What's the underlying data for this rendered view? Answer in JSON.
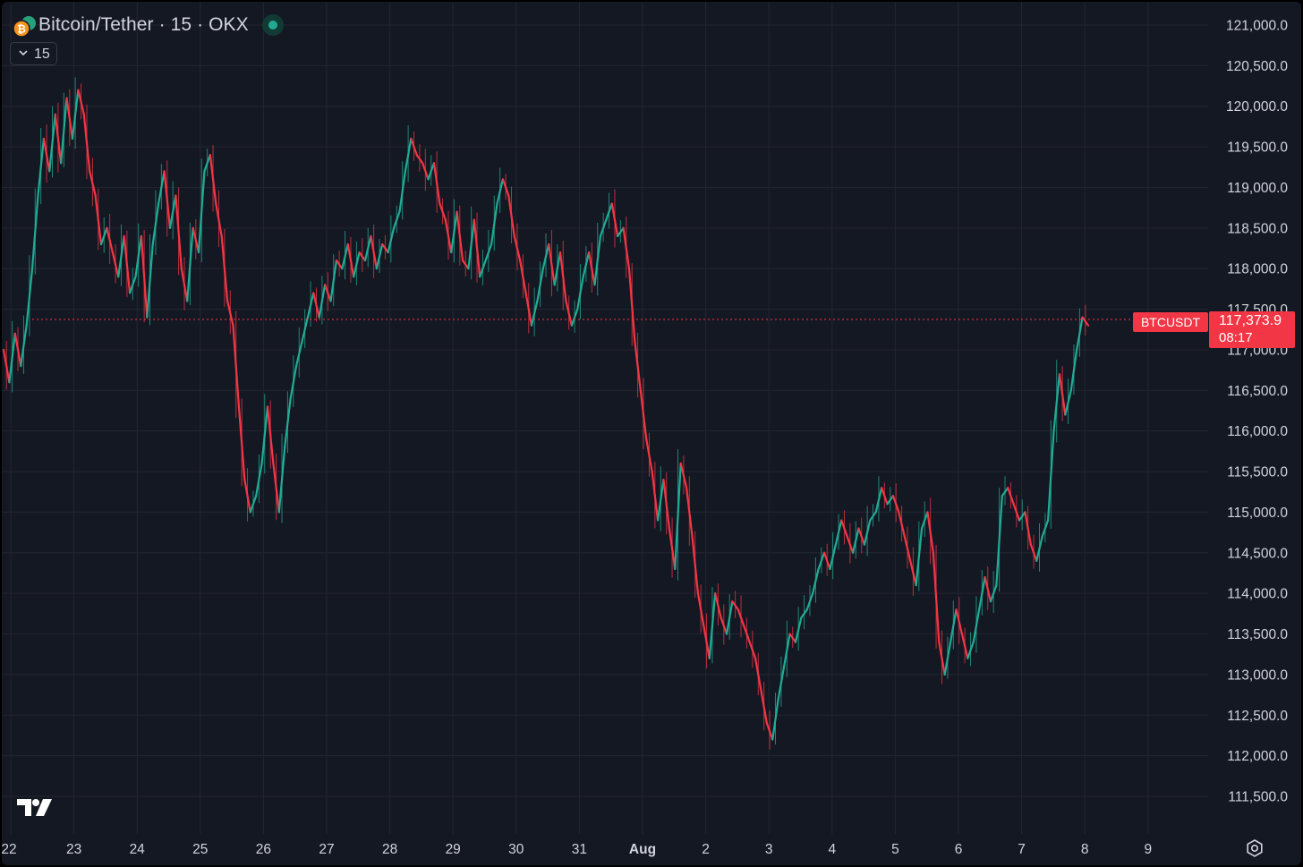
{
  "header": {
    "title": "Bitcoin/Tether · 15 · OKX",
    "interval_label": "15",
    "icons": [
      "bitcoin-tether-icon",
      "live-status-icon",
      "chevron-down-icon",
      "tradingview-logo",
      "settings-icon"
    ]
  },
  "price_label": {
    "symbol": "BTCUSDT",
    "price": "117,373.9",
    "countdown": "08:17"
  },
  "colors": {
    "background": "#141823",
    "grid": "#232632",
    "text": "#d1d4dc",
    "up": "#22ab94",
    "down": "#f23645"
  },
  "chart_data": {
    "type": "line",
    "title": "",
    "xlabel": "",
    "ylabel": "",
    "ylim": [
      111000,
      121250
    ],
    "y_ticks": [
      "121,000.0",
      "120,500.0",
      "120,000.0",
      "119,500.0",
      "119,000.0",
      "118,500.0",
      "118,000.0",
      "117,500.0",
      "117,000.0",
      "116,500.0",
      "116,000.0",
      "115,500.0",
      "115,000.0",
      "114,500.0",
      "114,000.0",
      "113,500.0",
      "113,000.0",
      "112,500.0",
      "112,000.0",
      "111,500.0"
    ],
    "x_tick_labels": [
      "22",
      "23",
      "24",
      "25",
      "26",
      "27",
      "28",
      "29",
      "30",
      "31",
      "Aug",
      "2",
      "3",
      "4",
      "5",
      "6",
      "7",
      "8",
      "9"
    ],
    "last_price": 117373.9,
    "series": [
      {
        "values": [
          117000,
          116600,
          117200,
          116800,
          117300,
          118000,
          118900,
          119600,
          119200,
          119900,
          119300,
          120100,
          119600,
          120200,
          119900,
          119200,
          118900,
          118300,
          118500,
          118200,
          117900,
          118400,
          117700,
          117900,
          118400,
          117400,
          118300,
          118800,
          119200,
          118500,
          118900,
          118000,
          117600,
          118500,
          118200,
          119200,
          119400,
          118800,
          118400,
          117600,
          117300,
          116300,
          115400,
          115000,
          115200,
          115600,
          116300,
          115600,
          115000,
          115800,
          116400,
          116800,
          117100,
          117400,
          117700,
          117400,
          117800,
          117600,
          118100,
          118000,
          118300,
          117900,
          118200,
          118100,
          118400,
          118000,
          118300,
          118200,
          118500,
          118700,
          119200,
          119600,
          119400,
          119300,
          119100,
          119300,
          118800,
          118600,
          118200,
          118700,
          118100,
          118000,
          118600,
          117900,
          118100,
          118300,
          118800,
          119100,
          118900,
          118400,
          118100,
          117700,
          117300,
          117600,
          118000,
          118300,
          117800,
          118200,
          117600,
          117300,
          117500,
          117900,
          118200,
          117800,
          118400,
          118600,
          118800,
          118400,
          118500,
          118000,
          117100,
          116500,
          115900,
          115500,
          114900,
          115400,
          114800,
          114300,
          115600,
          115300,
          114700,
          114000,
          113600,
          113200,
          114000,
          113700,
          113500,
          113900,
          113800,
          113600,
          113400,
          113200,
          112800,
          112400,
          112200,
          112700,
          113100,
          113500,
          113400,
          113700,
          113800,
          114000,
          114300,
          114500,
          114300,
          114600,
          114900,
          114700,
          114500,
          114800,
          114600,
          114900,
          115000,
          115300,
          115100,
          115200,
          115000,
          114700,
          114400,
          114100,
          114800,
          115000,
          114500,
          113400,
          113000,
          113400,
          113800,
          113500,
          113200,
          113400,
          113800,
          114200,
          113900,
          114100,
          115200,
          115300,
          115100,
          114900,
          115000,
          114600,
          114400,
          114700,
          114900,
          116000,
          116700,
          116200,
          116500,
          117000,
          117400,
          117300
        ]
      }
    ]
  }
}
